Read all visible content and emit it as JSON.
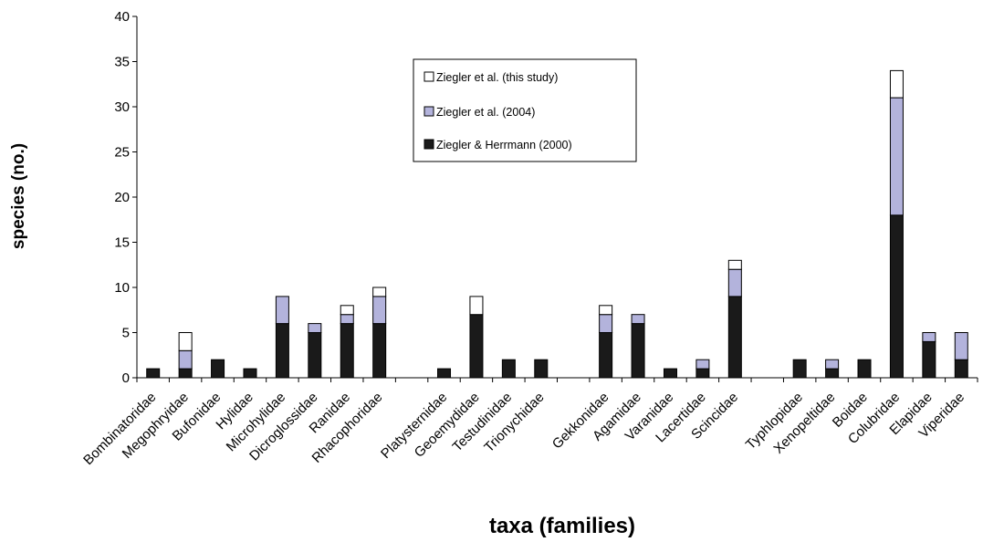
{
  "chart_data": {
    "type": "bar",
    "stacked": true,
    "xlabel": "taxa (families)",
    "ylabel": "species (no.)",
    "ylim": [
      0,
      40
    ],
    "yticks": [
      0,
      5,
      10,
      15,
      20,
      25,
      30,
      35,
      40
    ],
    "grid": false,
    "legend_position": "top-center",
    "slots": [
      "Bombinatoridae",
      "Megophryidae",
      "Bufonidae",
      "Hylidae",
      "Microhylidae",
      "Dicroglossidae",
      "Ranidae",
      "Rhacophoridae",
      "",
      "Platysternidae",
      "Geoemydidae",
      "Testudinidae",
      "Trionychidae",
      "",
      "Gekkonidae",
      "Agamidae",
      "Varanidae",
      "Lacertidae",
      "Scincidae",
      "",
      "Typhlopidae",
      "Xenopeltidae",
      "Boidae",
      "Colubridae",
      "Elapidae",
      "Viperidae"
    ],
    "series": [
      {
        "name": "Ziegler & Herrmann (2000)",
        "color": "#1a1a1a",
        "values": [
          1,
          1,
          2,
          1,
          6,
          5,
          6,
          6,
          null,
          1,
          7,
          2,
          2,
          null,
          5,
          6,
          1,
          1,
          9,
          null,
          2,
          1,
          2,
          18,
          4,
          2
        ]
      },
      {
        "name": "Ziegler et al. (2004)",
        "color": "#b3b3dc",
        "values": [
          0,
          2,
          0,
          0,
          3,
          1,
          1,
          3,
          null,
          0,
          0,
          0,
          0,
          null,
          2,
          1,
          0,
          1,
          3,
          null,
          0,
          1,
          0,
          13,
          1,
          3
        ]
      },
      {
        "name": "Ziegler et al. (this study)",
        "color": "#ffffff",
        "values": [
          0,
          2,
          0,
          0,
          0,
          0,
          1,
          1,
          null,
          0,
          2,
          0,
          0,
          null,
          1,
          0,
          0,
          0,
          1,
          null,
          0,
          0,
          0,
          3,
          0,
          0
        ]
      }
    ]
  }
}
